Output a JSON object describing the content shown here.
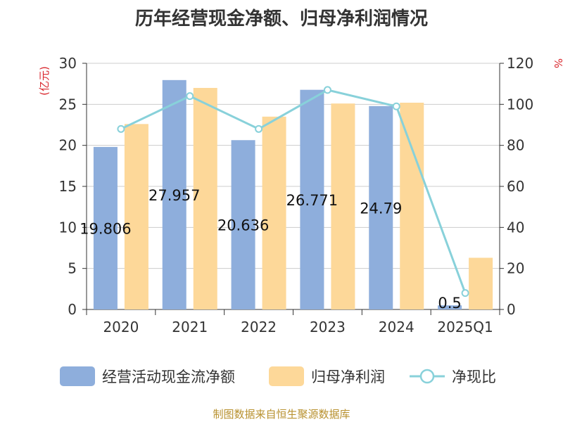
{
  "title": "历年经营现金净额、归母净利润情况",
  "source": "制图数据来自恒生聚源数据库",
  "chart_data": {
    "type": "bar",
    "categories": [
      "2020",
      "2021",
      "2022",
      "2023",
      "2024",
      "2025Q1"
    ],
    "y_left_label": "(亿元)",
    "y_right_label": "%",
    "ylim_left": [
      0,
      30
    ],
    "ylim_right": [
      0,
      120
    ],
    "y_left_ticks": [
      "0",
      "5",
      "10",
      "15",
      "20",
      "25",
      "30"
    ],
    "y_right_ticks": [
      "0",
      "20",
      "40",
      "60",
      "80",
      "100",
      "120"
    ],
    "grid": true,
    "legend_position": "bottom",
    "series": [
      {
        "name": "经营活动现金流净额",
        "type": "bar",
        "axis": "left",
        "color": "#8eaedc",
        "values": [
          19.806,
          27.957,
          20.636,
          26.771,
          24.79,
          0.5
        ],
        "labels": [
          "19.806",
          "27.957",
          "20.636",
          "26.771",
          "24.79",
          "0.5"
        ]
      },
      {
        "name": "归母净利润",
        "type": "bar",
        "axis": "left",
        "color": "#fdd899",
        "values": [
          22.6,
          27.0,
          23.5,
          25.1,
          25.2,
          6.3
        ]
      },
      {
        "name": "净现比",
        "type": "line",
        "axis": "right",
        "color": "#88d1da",
        "values": [
          88,
          104,
          88,
          107,
          99,
          8
        ]
      }
    ]
  }
}
